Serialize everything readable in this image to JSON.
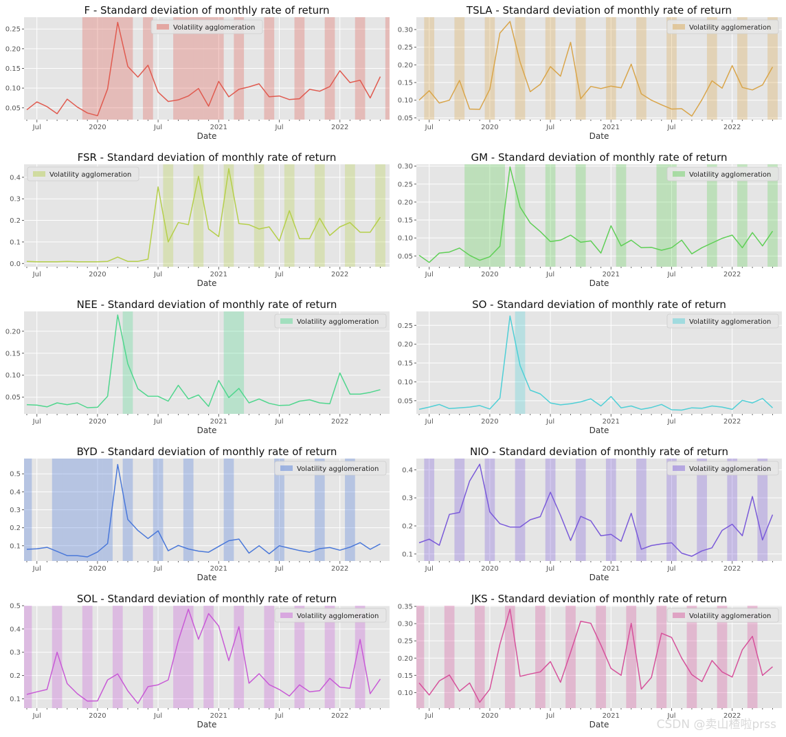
{
  "shared": {
    "xlabel": "Date",
    "x_ticks": [
      "Jul",
      "2020",
      "Jul",
      "2021",
      "Jul",
      "2022"
    ],
    "legend_label": "Volatility agglomeration"
  },
  "watermark": "CSDN @卖山楂啦prss",
  "chart_data": [
    {
      "type": "line",
      "title": "F - Standard deviation of monthly rate of return",
      "color": "#e05a4f",
      "legend_position": "top-center",
      "ylim": [
        0.02,
        0.28
      ],
      "yticks": [
        0.05,
        0.1,
        0.15,
        0.2,
        0.25
      ],
      "values": [
        0.045,
        0.065,
        0.053,
        0.035,
        0.072,
        0.052,
        0.037,
        0.03,
        0.098,
        0.267,
        0.155,
        0.128,
        0.158,
        0.09,
        0.066,
        0.07,
        0.08,
        0.099,
        0.054,
        0.117,
        0.078,
        0.097,
        0.103,
        0.111,
        0.078,
        0.08,
        0.071,
        0.073,
        0.097,
        0.092,
        0.104,
        0.144,
        0.114,
        0.12,
        0.075,
        0.129
      ],
      "shaded_months": [
        6,
        7,
        8,
        9,
        10,
        12,
        15,
        16,
        17,
        18,
        19,
        21,
        24,
        27,
        30,
        33,
        36
      ]
    },
    {
      "type": "line",
      "title": "TSLA - Standard deviation of monthly rate of return",
      "color": "#d9a54a",
      "legend_position": "top-right",
      "ylim": [
        0.045,
        0.335
      ],
      "yticks": [
        0.05,
        0.1,
        0.15,
        0.2,
        0.25,
        0.3
      ],
      "values": [
        0.1,
        0.127,
        0.092,
        0.1,
        0.156,
        0.075,
        0.074,
        0.131,
        0.29,
        0.323,
        0.208,
        0.124,
        0.145,
        0.195,
        0.168,
        0.264,
        0.104,
        0.139,
        0.133,
        0.14,
        0.135,
        0.202,
        0.118,
        0.1,
        0.087,
        0.075,
        0.076,
        0.055,
        0.101,
        0.155,
        0.134,
        0.198,
        0.136,
        0.129,
        0.143,
        0.194
      ],
      "shaded_months": [
        1,
        4,
        7,
        10,
        13,
        16,
        19,
        22,
        25,
        29,
        32,
        35
      ]
    },
    {
      "type": "line",
      "title": "FSR - Standard deviation of monthly rate of return",
      "color": "#b5cf4a",
      "legend_position": "top-left",
      "ylim": [
        -0.015,
        0.46
      ],
      "yticks": [
        0.0,
        0.1,
        0.2,
        0.3,
        0.4
      ],
      "values": [
        0.01,
        0.008,
        0.008,
        0.008,
        0.01,
        0.008,
        0.008,
        0.008,
        0.01,
        0.03,
        0.01,
        0.01,
        0.02,
        0.355,
        0.1,
        0.19,
        0.18,
        0.405,
        0.16,
        0.125,
        0.44,
        0.185,
        0.18,
        0.16,
        0.17,
        0.105,
        0.245,
        0.115,
        0.115,
        0.21,
        0.13,
        0.17,
        0.19,
        0.145,
        0.145,
        0.215
      ],
      "shaded_months": [
        14,
        17,
        20,
        23,
        26,
        29,
        32,
        35
      ]
    },
    {
      "type": "line",
      "title": "GM - Standard deviation of monthly rate of return",
      "color": "#5fcf56",
      "legend_position": "top-right",
      "ylim": [
        0.02,
        0.305
      ],
      "yticks": [
        0.05,
        0.1,
        0.15,
        0.2,
        0.25,
        0.3
      ],
      "values": [
        0.052,
        0.032,
        0.058,
        0.061,
        0.072,
        0.052,
        0.038,
        0.048,
        0.077,
        0.298,
        0.186,
        0.142,
        0.118,
        0.09,
        0.094,
        0.108,
        0.088,
        0.092,
        0.058,
        0.134,
        0.078,
        0.094,
        0.073,
        0.074,
        0.066,
        0.073,
        0.094,
        0.056,
        0.073,
        0.086,
        0.099,
        0.108,
        0.073,
        0.115,
        0.078,
        0.119
      ],
      "shaded_months": [
        5,
        6,
        7,
        8,
        10,
        13,
        16,
        20,
        24,
        25,
        29,
        32,
        35
      ]
    },
    {
      "type": "line",
      "title": "NEE - Standard deviation of monthly rate of return",
      "color": "#4fd68d",
      "legend_position": "top-right",
      "ylim": [
        0.012,
        0.245
      ],
      "yticks": [
        0.05,
        0.1,
        0.15,
        0.2
      ],
      "values": [
        0.033,
        0.032,
        0.028,
        0.037,
        0.033,
        0.037,
        0.026,
        0.027,
        0.052,
        0.237,
        0.126,
        0.069,
        0.052,
        0.052,
        0.041,
        0.077,
        0.046,
        0.055,
        0.029,
        0.088,
        0.049,
        0.07,
        0.037,
        0.046,
        0.036,
        0.031,
        0.032,
        0.041,
        0.044,
        0.037,
        0.035,
        0.105,
        0.057,
        0.057,
        0.061,
        0.067
      ],
      "shaded_months": [
        10,
        20,
        21
      ]
    },
    {
      "type": "line",
      "title": "SO - Standard deviation of monthly rate of return",
      "color": "#4ecfd6",
      "legend_position": "top-right",
      "ylim": [
        0.015,
        0.287
      ],
      "yticks": [
        0.05,
        0.1,
        0.15,
        0.2,
        0.25
      ],
      "values": [
        0.027,
        0.033,
        0.04,
        0.029,
        0.031,
        0.033,
        0.037,
        0.028,
        0.057,
        0.275,
        0.143,
        0.078,
        0.068,
        0.044,
        0.039,
        0.042,
        0.047,
        0.055,
        0.036,
        0.061,
        0.031,
        0.036,
        0.027,
        0.032,
        0.04,
        0.026,
        0.025,
        0.031,
        0.03,
        0.036,
        0.033,
        0.027,
        0.051,
        0.044,
        0.056,
        0.031
      ],
      "shaded_months": [
        10
      ]
    },
    {
      "type": "line",
      "title": "BYD - Standard deviation of monthly rate of return",
      "color": "#4a78d9",
      "legend_position": "top-right",
      "ylim": [
        0.015,
        0.585
      ],
      "yticks": [
        0.1,
        0.2,
        0.3,
        0.4,
        0.5
      ],
      "values": [
        0.08,
        0.083,
        0.091,
        0.068,
        0.045,
        0.045,
        0.038,
        0.065,
        0.112,
        0.552,
        0.246,
        0.185,
        0.14,
        0.183,
        0.072,
        0.102,
        0.082,
        0.07,
        0.064,
        0.096,
        0.128,
        0.137,
        0.059,
        0.1,
        0.055,
        0.1,
        0.086,
        0.073,
        0.064,
        0.084,
        0.09,
        0.075,
        0.092,
        0.117,
        0.08,
        0.11
      ],
      "shaded_months": [
        0,
        3,
        4,
        5,
        6,
        7,
        8,
        10,
        13,
        16,
        20,
        25,
        29,
        32
      ]
    },
    {
      "type": "line",
      "title": "NIO - Standard deviation of monthly rate of return",
      "color": "#7a5ad9",
      "legend_position": "top-right",
      "ylim": [
        0.075,
        0.44
      ],
      "yticks": [
        0.1,
        0.2,
        0.3,
        0.4
      ],
      "values": [
        0.14,
        0.153,
        0.131,
        0.241,
        0.248,
        0.36,
        0.42,
        0.25,
        0.208,
        0.196,
        0.196,
        0.222,
        0.233,
        0.32,
        0.238,
        0.148,
        0.234,
        0.218,
        0.165,
        0.17,
        0.145,
        0.245,
        0.117,
        0.13,
        0.136,
        0.14,
        0.103,
        0.092,
        0.111,
        0.122,
        0.184,
        0.206,
        0.165,
        0.305,
        0.15,
        0.24
      ],
      "shaded_months": [
        1,
        4,
        7,
        10,
        13,
        16,
        19,
        22,
        25,
        28,
        31,
        34
      ]
    },
    {
      "type": "line",
      "title": "SOL - Standard deviation of monthly rate of return",
      "color": "#c85ad6",
      "legend_position": "top-right",
      "ylim": [
        0.06,
        0.5
      ],
      "yticks": [
        0.1,
        0.2,
        0.3,
        0.4,
        0.5
      ],
      "values": [
        0.119,
        0.13,
        0.14,
        0.3,
        0.165,
        0.122,
        0.09,
        0.091,
        0.181,
        0.207,
        0.134,
        0.08,
        0.152,
        0.16,
        0.181,
        0.35,
        0.485,
        0.356,
        0.466,
        0.413,
        0.264,
        0.41,
        0.167,
        0.208,
        0.161,
        0.14,
        0.112,
        0.16,
        0.13,
        0.135,
        0.188,
        0.15,
        0.145,
        0.355,
        0.122,
        0.185
      ],
      "shaded_months": [
        0,
        3,
        6,
        9,
        12,
        15,
        16,
        18,
        21,
        24,
        27,
        30,
        33
      ]
    },
    {
      "type": "line",
      "title": "JKS - Standard deviation of monthly rate of return",
      "color": "#d6519b",
      "legend_position": "top-right",
      "ylim": [
        0.055,
        0.352
      ],
      "yticks": [
        0.1,
        0.15,
        0.2,
        0.25,
        0.3,
        0.35
      ],
      "values": [
        0.128,
        0.093,
        0.134,
        0.151,
        0.104,
        0.128,
        0.072,
        0.11,
        0.24,
        0.342,
        0.147,
        0.154,
        0.16,
        0.19,
        0.13,
        0.217,
        0.307,
        0.301,
        0.238,
        0.17,
        0.15,
        0.301,
        0.11,
        0.144,
        0.272,
        0.26,
        0.2,
        0.152,
        0.132,
        0.193,
        0.16,
        0.145,
        0.224,
        0.263,
        0.15,
        0.175
      ],
      "shaded_months": [
        0,
        3,
        6,
        9,
        12,
        15,
        18,
        21,
        24,
        27,
        30,
        33
      ]
    }
  ]
}
